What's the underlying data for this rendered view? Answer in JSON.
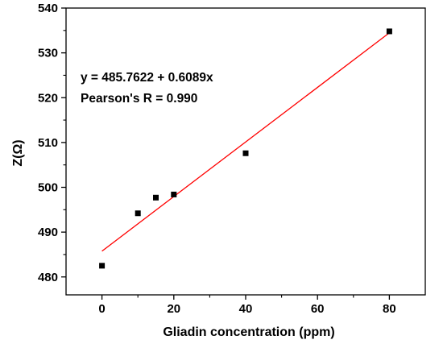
{
  "chart_data": {
    "type": "scatter",
    "title": "",
    "xlabel": "Gliadin concentration (ppm)",
    "ylabel": "Z(Ω)",
    "xlim": [
      -10,
      90
    ],
    "ylim": [
      476,
      540
    ],
    "x_ticks": [
      0,
      20,
      40,
      60,
      80
    ],
    "y_ticks": [
      480,
      490,
      500,
      510,
      520,
      530,
      540
    ],
    "grid": false,
    "series": [
      {
        "marker": "square",
        "color": "#000000",
        "points": [
          {
            "x": 0,
            "y": 482.5
          },
          {
            "x": 10,
            "y": 494.2
          },
          {
            "x": 15,
            "y": 497.7
          },
          {
            "x": 20,
            "y": 498.4
          },
          {
            "x": 40,
            "y": 507.6
          },
          {
            "x": 80,
            "y": 534.8
          }
        ]
      }
    ],
    "fit": {
      "intercept": 485.7622,
      "slope": 0.6089,
      "x_range": [
        0,
        80
      ],
      "color": "#ff0000"
    },
    "annotations": [
      "y = 485.7622 + 0.6089x",
      "Pearson's R = 0.990"
    ]
  }
}
